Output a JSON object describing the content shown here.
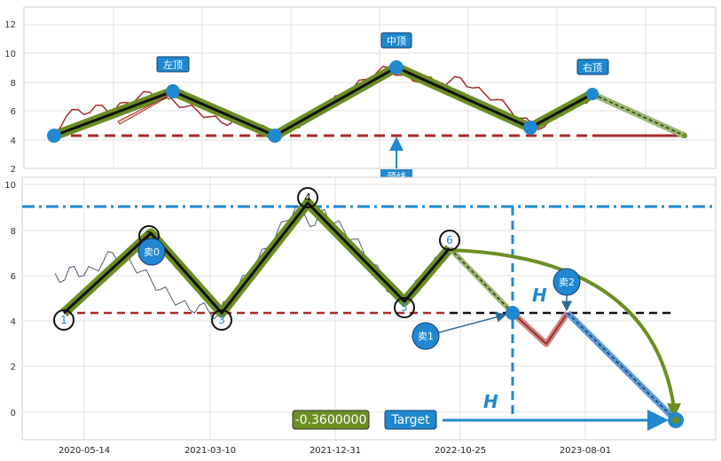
{
  "chart_data": [
    {
      "type": "line",
      "title": "",
      "xlabel": "",
      "ylabel": "",
      "ylim": [
        2,
        13
      ],
      "yticks": [
        2,
        4,
        6,
        8,
        10,
        12
      ],
      "grid": true,
      "pattern": "head-and-shoulders top",
      "series": [
        {
          "values": [
            4.5,
            5.6,
            6.1,
            5.9,
            6.4,
            6.0,
            6.6,
            6.9,
            7.3,
            7.1,
            6.7,
            6.3,
            6.0,
            5.6,
            5.2,
            5.3,
            5.4,
            4.9,
            4.6,
            4.3,
            4.8,
            5.4,
            5.9,
            6.5,
            7.1,
            7.6,
            8.2,
            8.7,
            9.0,
            8.5,
            8.1,
            8.4,
            7.8,
            8.0,
            8.3,
            7.6,
            7.2,
            6.8,
            6.2,
            5.5,
            5.0,
            4.9,
            5.6,
            6.3,
            6.6,
            7.0
          ]
        }
      ],
      "pattern_points": [
        {
          "label": "",
          "y": 4.3
        },
        {
          "label": "左顶",
          "y": 7.4
        },
        {
          "label": "",
          "y": 4.3
        },
        {
          "label": "中顶",
          "y": 9.1
        },
        {
          "label": "",
          "y": 4.9
        },
        {
          "label": "右顶",
          "y": 7.2
        },
        {
          "label": "",
          "y": 4.3
        }
      ],
      "neckline": {
        "label": "颈线",
        "y": 4.3
      }
    },
    {
      "type": "line",
      "title": "",
      "xlabel": "",
      "ylabel": "",
      "ylim": [
        -1.2,
        10.2
      ],
      "yticks": [
        0,
        2,
        4,
        6,
        8,
        10
      ],
      "x_tick_labels": [
        "2020-05-14",
        "2021-03-10",
        "2021-12-31",
        "2022-10-25",
        "2023-08-01"
      ],
      "grid": true,
      "series": [
        {
          "values": [
            6.1,
            5.8,
            6.4,
            6.0,
            6.3,
            6.6,
            7.0,
            6.8,
            6.5,
            6.2,
            5.8,
            5.4,
            5.1,
            4.8,
            4.5,
            4.7,
            4.4,
            4.3,
            4.9,
            5.5,
            6.0,
            6.6,
            7.2,
            7.8,
            8.4,
            9.0,
            8.6,
            8.2,
            8.9,
            8.3,
            8.0,
            7.6,
            7.1,
            6.5,
            5.9,
            5.2,
            4.9,
            5.3,
            5.8,
            6.3,
            6.8,
            7.1
          ]
        }
      ],
      "pattern_points": [
        {
          "label": "1",
          "y": 4.3
        },
        {
          "label": "2",
          "y": 7.4
        },
        {
          "label": "3",
          "y": 4.3
        },
        {
          "label": "4",
          "y": 9.1
        },
        {
          "label": "5",
          "y": 4.9
        },
        {
          "label": "6",
          "y": 7.2
        }
      ],
      "neckline_y": 4.3,
      "top_line_y": 9.1,
      "projection": [
        7.2,
        4.3,
        2.9,
        4.3,
        -0.36
      ],
      "sell_labels": [
        "卖0",
        "卖1",
        "卖2"
      ],
      "h_label": "H",
      "target_label": "Target",
      "target_value": "-0.3600000",
      "colors": {
        "pattern_green": "#6b8e23",
        "price": "#3e4a61",
        "neckline": "#a52a2a",
        "blue": "#1f88d0"
      }
    }
  ]
}
